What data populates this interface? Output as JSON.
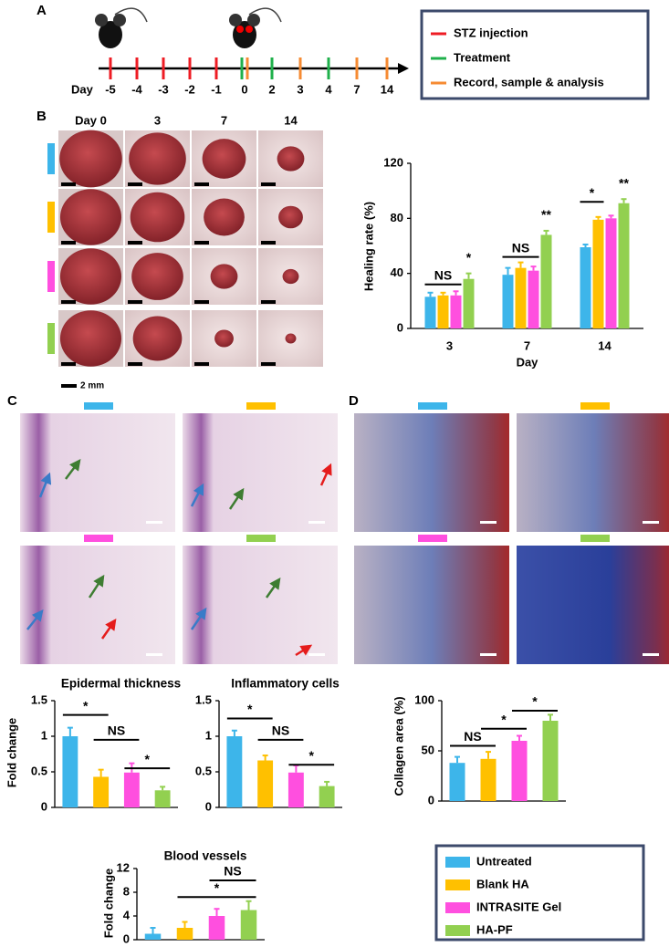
{
  "panel_labels": [
    "A",
    "B",
    "C",
    "D"
  ],
  "timeline": {
    "axis_label": "Day",
    "days": [
      "-5",
      "-4",
      "-3",
      "-2",
      "-1",
      "0",
      "2",
      "3",
      "4",
      "7",
      "14"
    ],
    "events": [
      {
        "name": "STZ injection",
        "color": "#ee1c24"
      },
      {
        "name": "Treatment",
        "color": "#1fb04b"
      },
      {
        "name": "Record, sample & analysis",
        "color": "#f68b33"
      }
    ]
  },
  "photos": {
    "columns": [
      "Day 0",
      "3",
      "7",
      "14"
    ],
    "scale": "2 mm"
  },
  "legend": [
    {
      "name": "Untreated",
      "color": "#3db5ea"
    },
    {
      "name": "Blank HA",
      "color": "#ffc000"
    },
    {
      "name": "INTRASITE Gel",
      "color": "#ff4fdf"
    },
    {
      "name": "HA-PF",
      "color": "#92d050"
    }
  ],
  "chart_data": [
    {
      "type": "grouped-bar",
      "ylabel": "Healing rate (%)",
      "xlabel": "Day",
      "categories": [
        "3",
        "7",
        "14"
      ],
      "series": [
        {
          "values": [
            23,
            39,
            59
          ],
          "errors": [
            3,
            5,
            2
          ]
        },
        {
          "values": [
            24,
            44,
            79
          ],
          "errors": [
            2,
            4,
            2
          ]
        },
        {
          "values": [
            24,
            42,
            80
          ],
          "errors": [
            3,
            3,
            2
          ]
        },
        {
          "values": [
            36,
            68,
            91
          ],
          "errors": [
            4,
            3,
            3
          ]
        }
      ],
      "ylim": [
        0,
        120
      ],
      "yticks": [
        0,
        40,
        80,
        120
      ],
      "annotations": [
        "NS",
        "*",
        "NS",
        "**",
        "*",
        "**"
      ]
    },
    {
      "type": "bar",
      "title": "Epidermal thickness",
      "ylabel": "Fold change",
      "values": [
        1.0,
        0.43,
        0.49,
        0.24
      ],
      "errors": [
        0.12,
        0.1,
        0.13,
        0.05
      ],
      "ylim": [
        0,
        1.5
      ],
      "yticks": [
        0,
        0.5,
        1,
        1.5
      ],
      "annotations": [
        "*",
        "NS",
        "*"
      ]
    },
    {
      "type": "bar",
      "title": "Inflammatory cells",
      "values": [
        1.0,
        0.66,
        0.49,
        0.3
      ],
      "errors": [
        0.08,
        0.07,
        0.1,
        0.06
      ],
      "ylim": [
        0,
        1.5
      ],
      "yticks": [
        0,
        0.5,
        1,
        1.5
      ],
      "annotations": [
        "*",
        "NS",
        "*"
      ]
    },
    {
      "type": "bar",
      "title": "Blood vessels",
      "ylabel": "Fold change",
      "values": [
        1,
        2,
        4,
        5
      ],
      "errors": [
        1,
        1,
        1.2,
        1.5
      ],
      "ylim": [
        0,
        12
      ],
      "yticks": [
        0,
        4,
        8,
        12
      ],
      "annotations": [
        "*",
        "NS"
      ]
    },
    {
      "type": "bar",
      "ylabel": "Collagen area (%)",
      "values": [
        38,
        42,
        60,
        80
      ],
      "errors": [
        6,
        7,
        5,
        6
      ],
      "ylim": [
        0,
        100
      ],
      "yticks": [
        0,
        50,
        100
      ],
      "annotations": [
        "NS",
        "*",
        "*"
      ]
    }
  ]
}
